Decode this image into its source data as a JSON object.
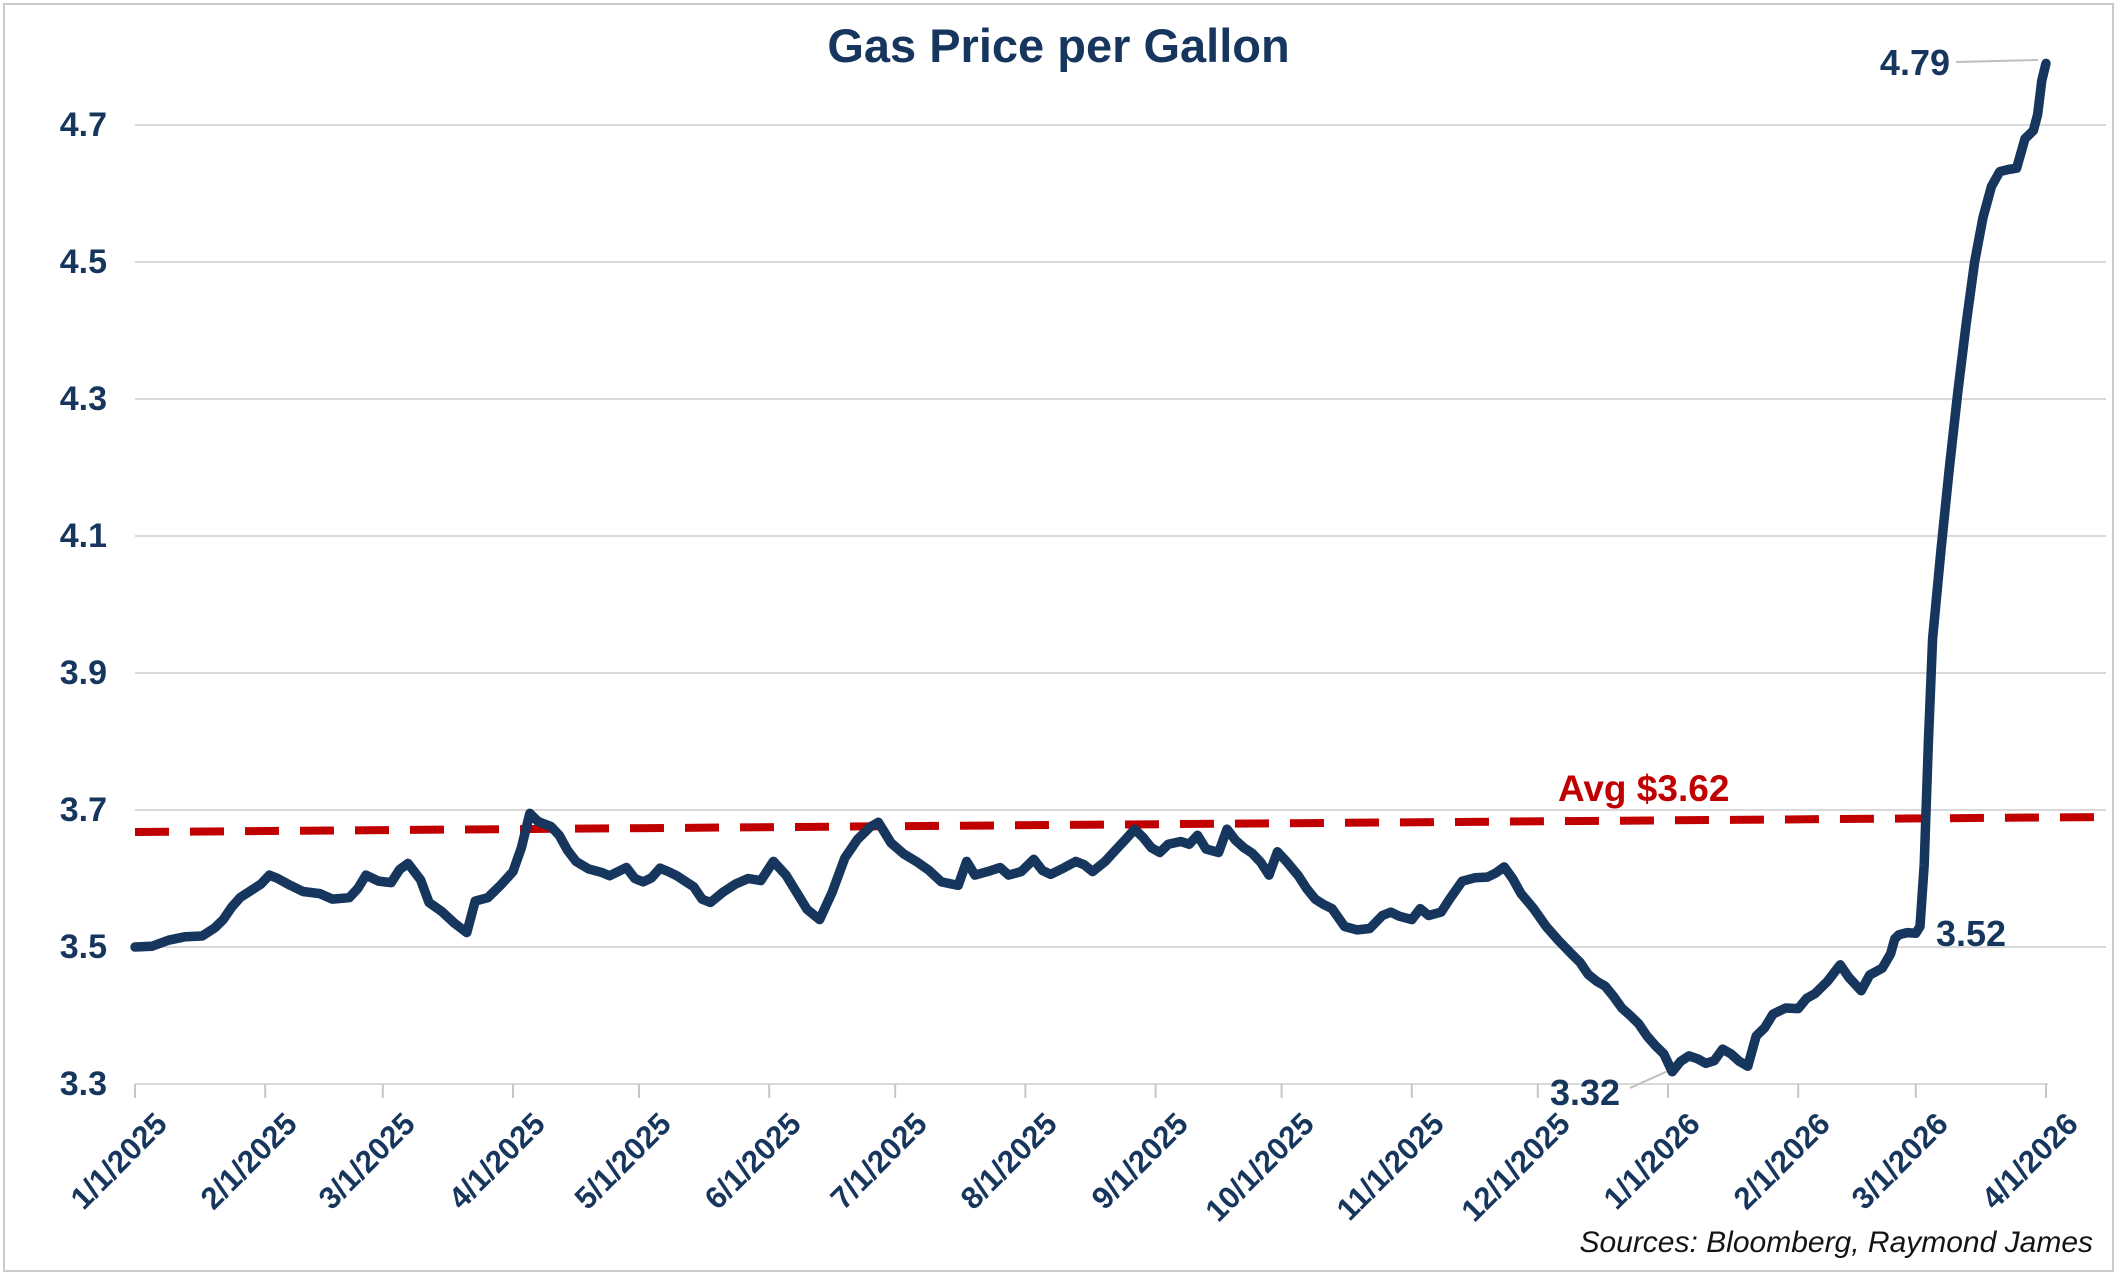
{
  "chart": {
    "title": "Gas Price per Gallon",
    "avg_label": "Avg $3.62",
    "annotation_end": "4.79",
    "annotation_prespike": "3.52",
    "annotation_min": "3.32",
    "source_note": "Sources: Bloomberg, Raymond James",
    "colors": {
      "line_navy": "#17365D",
      "avg_red": "#C00000",
      "gridline": "#D9D9D9",
      "axis_tick": "#C6C6C6",
      "leader": "#BFBFBF"
    }
  },
  "chart_data": {
    "type": "line",
    "title": "Gas Price per Gallon",
    "x_unit": "days since 1/1/2025",
    "x_tick_labels": [
      "1/1/2025",
      "2/1/2025",
      "3/1/2025",
      "4/1/2025",
      "5/1/2025",
      "6/1/2025",
      "7/1/2025",
      "8/1/2025",
      "9/1/2025",
      "10/1/2025",
      "11/1/2025",
      "12/1/2025",
      "1/1/2026",
      "2/1/2026",
      "3/1/2026",
      "4/1/2026"
    ],
    "x_tick_day_offsets": [
      0,
      31,
      59,
      90,
      120,
      151,
      181,
      212,
      243,
      273,
      304,
      334,
      365,
      396,
      424,
      455
    ],
    "ylim": [
      3.3,
      4.7
    ],
    "ytick_labels": [
      "3.3",
      "3.5",
      "3.7",
      "3.9",
      "4.1",
      "4.3",
      "4.5",
      "4.7"
    ],
    "yticks": [
      3.3,
      3.5,
      3.7,
      3.9,
      4.1,
      4.3,
      4.5,
      4.7
    ],
    "grid": "horizontal",
    "legend": "none",
    "average_line": {
      "label": "Avg $3.62",
      "value": 3.62,
      "style": "dashed",
      "color": "#C00000"
    },
    "annotations": [
      {
        "text": "4.79",
        "day": 455,
        "value": 4.79
      },
      {
        "text": "3.52",
        "day": 424,
        "value": 3.52
      },
      {
        "text": "3.32",
        "day": 366,
        "value": 3.32
      }
    ],
    "source_note": "Sources: Bloomberg, Raymond James",
    "series": [
      {
        "name": "Gas Price per Gallon",
        "points": [
          [
            0,
            3.5
          ],
          [
            4,
            3.501
          ],
          [
            8,
            3.51
          ],
          [
            12,
            3.515
          ],
          [
            16,
            3.516
          ],
          [
            19,
            3.528
          ],
          [
            21,
            3.54
          ],
          [
            23,
            3.558
          ],
          [
            25,
            3.572
          ],
          [
            27,
            3.58
          ],
          [
            30,
            3.592
          ],
          [
            32,
            3.605
          ],
          [
            34,
            3.6
          ],
          [
            37,
            3.59
          ],
          [
            40,
            3.581
          ],
          [
            44,
            3.578
          ],
          [
            47,
            3.57
          ],
          [
            51,
            3.572
          ],
          [
            53,
            3.585
          ],
          [
            55,
            3.605
          ],
          [
            58,
            3.596
          ],
          [
            61,
            3.594
          ],
          [
            63,
            3.613
          ],
          [
            65,
            3.622
          ],
          [
            68,
            3.598
          ],
          [
            70,
            3.565
          ],
          [
            73,
            3.552
          ],
          [
            76,
            3.535
          ],
          [
            79,
            3.521
          ],
          [
            81,
            3.567
          ],
          [
            84,
            3.572
          ],
          [
            87,
            3.59
          ],
          [
            90,
            3.61
          ],
          [
            92,
            3.645
          ],
          [
            94,
            3.695
          ],
          [
            96,
            3.683
          ],
          [
            99,
            3.676
          ],
          [
            101,
            3.663
          ],
          [
            103,
            3.641
          ],
          [
            105,
            3.625
          ],
          [
            108,
            3.614
          ],
          [
            111,
            3.609
          ],
          [
            113,
            3.604
          ],
          [
            115,
            3.61
          ],
          [
            117,
            3.616
          ],
          [
            119,
            3.6
          ],
          [
            121,
            3.595
          ],
          [
            123,
            3.601
          ],
          [
            125,
            3.615
          ],
          [
            127,
            3.61
          ],
          [
            129,
            3.604
          ],
          [
            131,
            3.596
          ],
          [
            133,
            3.588
          ],
          [
            135,
            3.57
          ],
          [
            137,
            3.565
          ],
          [
            140,
            3.58
          ],
          [
            143,
            3.592
          ],
          [
            146,
            3.6
          ],
          [
            149,
            3.597
          ],
          [
            152,
            3.625
          ],
          [
            155,
            3.605
          ],
          [
            157,
            3.585
          ],
          [
            160,
            3.555
          ],
          [
            163,
            3.54
          ],
          [
            166,
            3.58
          ],
          [
            169,
            3.63
          ],
          [
            172,
            3.657
          ],
          [
            175,
            3.675
          ],
          [
            177,
            3.682
          ],
          [
            180,
            3.652
          ],
          [
            183,
            3.636
          ],
          [
            186,
            3.625
          ],
          [
            189,
            3.612
          ],
          [
            192,
            3.595
          ],
          [
            196,
            3.59
          ],
          [
            198,
            3.625
          ],
          [
            200,
            3.605
          ],
          [
            203,
            3.61
          ],
          [
            206,
            3.616
          ],
          [
            208,
            3.605
          ],
          [
            211,
            3.61
          ],
          [
            214,
            3.628
          ],
          [
            216,
            3.612
          ],
          [
            218,
            3.606
          ],
          [
            221,
            3.615
          ],
          [
            224,
            3.625
          ],
          [
            226,
            3.62
          ],
          [
            228,
            3.61
          ],
          [
            231,
            3.625
          ],
          [
            234,
            3.645
          ],
          [
            236,
            3.658
          ],
          [
            238,
            3.672
          ],
          [
            240,
            3.66
          ],
          [
            242,
            3.645
          ],
          [
            244,
            3.638
          ],
          [
            246,
            3.65
          ],
          [
            249,
            3.654
          ],
          [
            251,
            3.65
          ],
          [
            253,
            3.663
          ],
          [
            255,
            3.643
          ],
          [
            258,
            3.638
          ],
          [
            260,
            3.672
          ],
          [
            262,
            3.656
          ],
          [
            264,
            3.645
          ],
          [
            266,
            3.637
          ],
          [
            268,
            3.624
          ],
          [
            270,
            3.605
          ],
          [
            272,
            3.639
          ],
          [
            274,
            3.626
          ],
          [
            277,
            3.604
          ],
          [
            279,
            3.585
          ],
          [
            281,
            3.57
          ],
          [
            283,
            3.562
          ],
          [
            285,
            3.556
          ],
          [
            288,
            3.53
          ],
          [
            291,
            3.525
          ],
          [
            294,
            3.527
          ],
          [
            297,
            3.546
          ],
          [
            299,
            3.551
          ],
          [
            301,
            3.545
          ],
          [
            304,
            3.54
          ],
          [
            306,
            3.556
          ],
          [
            308,
            3.546
          ],
          [
            311,
            3.551
          ],
          [
            313,
            3.57
          ],
          [
            316,
            3.596
          ],
          [
            319,
            3.601
          ],
          [
            322,
            3.602
          ],
          [
            324,
            3.608
          ],
          [
            326,
            3.617
          ],
          [
            328,
            3.6
          ],
          [
            330,
            3.578
          ],
          [
            333,
            3.556
          ],
          [
            336,
            3.53
          ],
          [
            339,
            3.509
          ],
          [
            342,
            3.49
          ],
          [
            344,
            3.478
          ],
          [
            346,
            3.46
          ],
          [
            348,
            3.45
          ],
          [
            350,
            3.443
          ],
          [
            352,
            3.428
          ],
          [
            354,
            3.411
          ],
          [
            356,
            3.4
          ],
          [
            358,
            3.388
          ],
          [
            360,
            3.37
          ],
          [
            362,
            3.356
          ],
          [
            364,
            3.344
          ],
          [
            366,
            3.318
          ],
          [
            368,
            3.333
          ],
          [
            370,
            3.341
          ],
          [
            372,
            3.337
          ],
          [
            374,
            3.33
          ],
          [
            376,
            3.334
          ],
          [
            378,
            3.351
          ],
          [
            380,
            3.344
          ],
          [
            382,
            3.333
          ],
          [
            384,
            3.326
          ],
          [
            386,
            3.37
          ],
          [
            388,
            3.382
          ],
          [
            390,
            3.402
          ],
          [
            393,
            3.411
          ],
          [
            396,
            3.41
          ],
          [
            398,
            3.425
          ],
          [
            400,
            3.432
          ],
          [
            403,
            3.45
          ],
          [
            406,
            3.474
          ],
          [
            408,
            3.456
          ],
          [
            411,
            3.436
          ],
          [
            413,
            3.459
          ],
          [
            416,
            3.469
          ],
          [
            418,
            3.49
          ],
          [
            419,
            3.512
          ],
          [
            420,
            3.518
          ],
          [
            422,
            3.521
          ],
          [
            424,
            3.52
          ],
          [
            425,
            3.53
          ],
          [
            426,
            3.62
          ],
          [
            427,
            3.8
          ],
          [
            428,
            3.95
          ],
          [
            430,
            4.08
          ],
          [
            432,
            4.2
          ],
          [
            434,
            4.31
          ],
          [
            436,
            4.41
          ],
          [
            438,
            4.5
          ],
          [
            440,
            4.565
          ],
          [
            442,
            4.61
          ],
          [
            444,
            4.632
          ],
          [
            446,
            4.635
          ],
          [
            448,
            4.637
          ],
          [
            450,
            4.68
          ],
          [
            452,
            4.692
          ],
          [
            453,
            4.715
          ],
          [
            454,
            4.765
          ],
          [
            455,
            4.79
          ]
        ]
      }
    ]
  }
}
